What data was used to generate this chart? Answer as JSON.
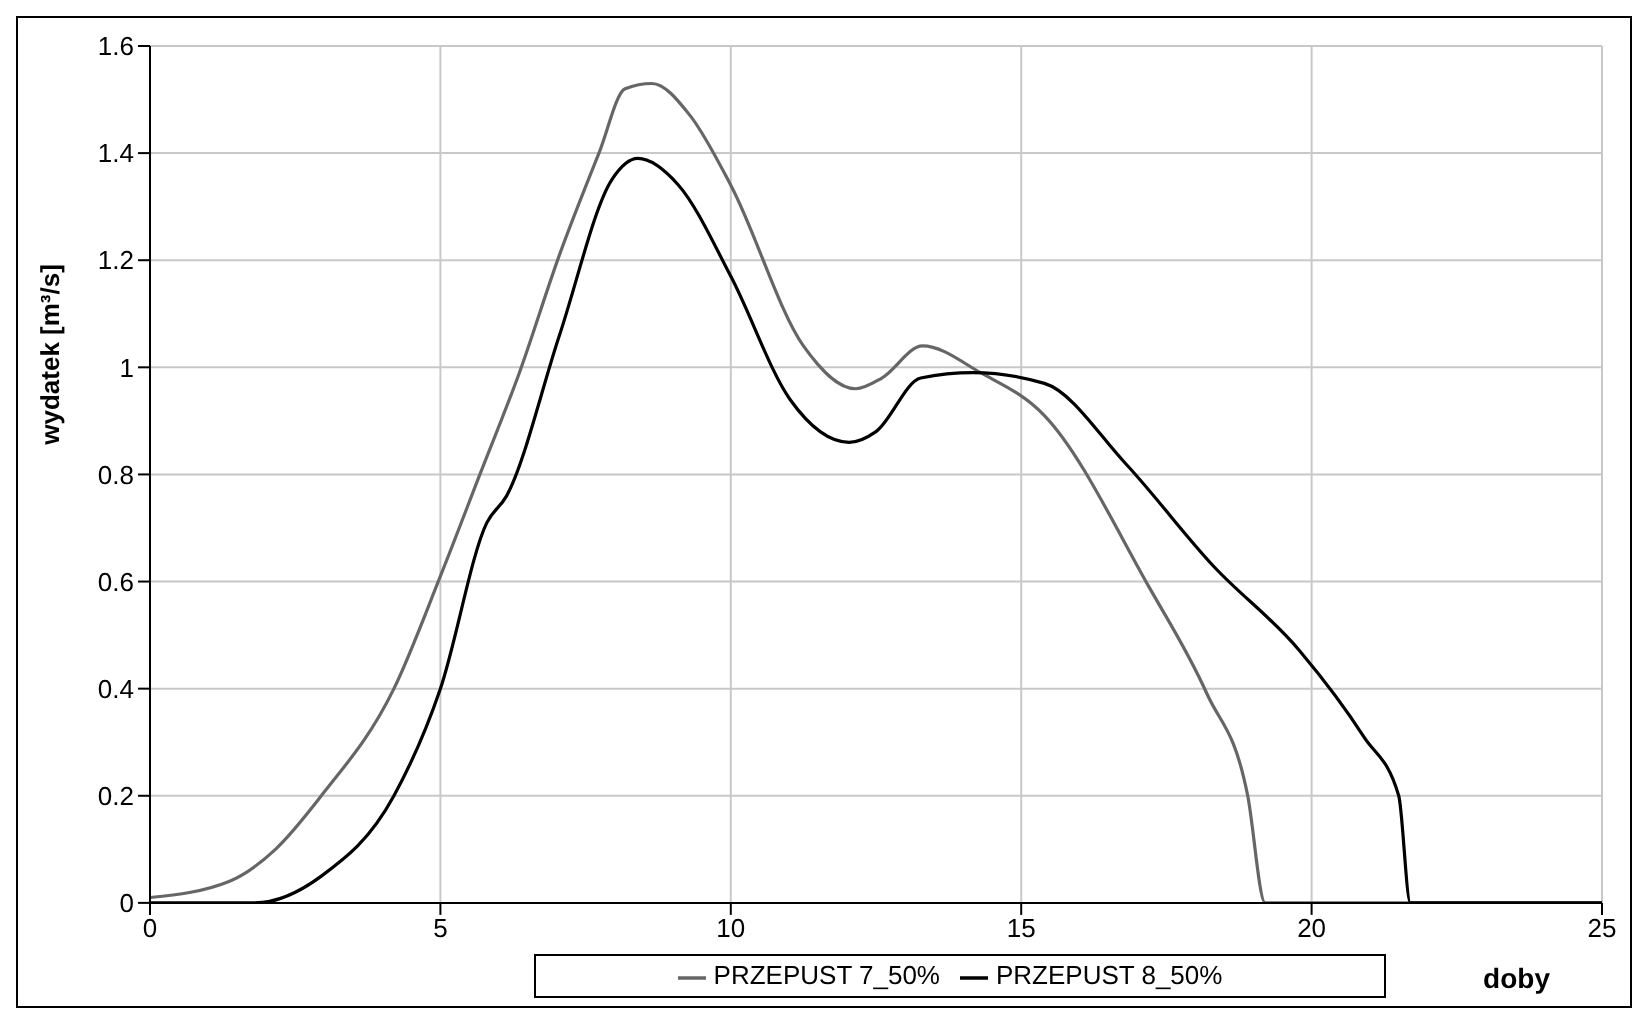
{
  "chart_data": {
    "type": "line",
    "xlabel": "doby",
    "ylabel": "wydatek [m³/s]",
    "xlim": [
      0,
      25
    ],
    "xticks": [
      0,
      5,
      10,
      15,
      20,
      25
    ],
    "ylim": [
      0,
      1.6
    ],
    "yticks": [
      0,
      0.2,
      0.4,
      0.6,
      0.8,
      1,
      1.2,
      1.4,
      1.6
    ],
    "grid": true,
    "legend": "bottom",
    "marker": "none",
    "line_style": "solid",
    "series": [
      {
        "name": "PRZEPUST 7_50%",
        "color": "#666666",
        "x": [
          0,
          1.36,
          2.16,
          2.95,
          4.2,
          5,
          5.68,
          6.36,
          7.05,
          7.73,
          8.18,
          8.64,
          9.3,
          10,
          11.25,
          12.15,
          12.6,
          13.3,
          14.3,
          15.4,
          17.2,
          18.2,
          18.9,
          19.2,
          25
        ],
        "values": [
          0.01,
          0.04,
          0.1,
          0.2,
          0.4,
          0.61,
          0.8,
          0.99,
          1.21,
          1.4,
          1.52,
          1.53,
          1.47,
          1.34,
          1.04,
          0.96,
          0.98,
          1.04,
          0.99,
          0.91,
          0.59,
          0.39,
          0.2,
          0,
          0
        ]
      },
      {
        "name": "PRZEPUST 8_50%",
        "color": "#000000",
        "x": [
          0,
          1.8,
          2.95,
          4.2,
          5,
          5.8,
          6.14,
          7.05,
          7.95,
          8.4,
          9.1,
          10,
          11.02,
          12.04,
          12.5,
          13.27,
          14.17,
          15.4,
          16.8,
          18.3,
          19.8,
          20.9,
          21.5,
          21.7,
          25
        ],
        "values": [
          0,
          0,
          0.05,
          0.2,
          0.4,
          0.71,
          0.76,
          1.06,
          1.35,
          1.39,
          1.34,
          1.17,
          0.94,
          0.86,
          0.88,
          0.98,
          0.99,
          0.97,
          0.82,
          0.63,
          0.47,
          0.31,
          0.2,
          0,
          0
        ]
      }
    ]
  }
}
